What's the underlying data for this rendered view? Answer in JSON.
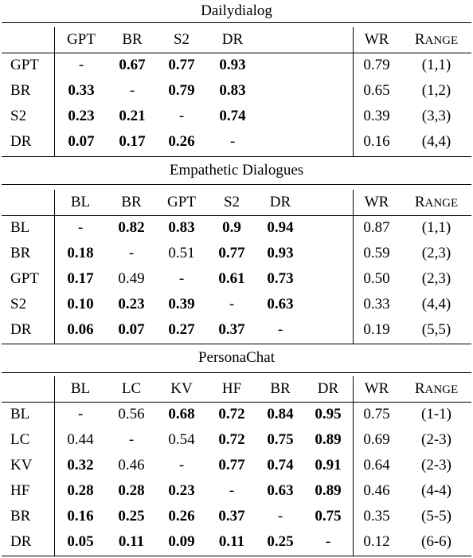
{
  "columns": {
    "wr": "WR",
    "range_first": "R",
    "range_rest": "ANGE"
  },
  "sections": [
    {
      "title": "Dailydialog",
      "headers": [
        "GPT",
        "BR",
        "S2",
        "DR"
      ],
      "rows": [
        {
          "label": "GPT",
          "cells": [
            {
              "v": "-",
              "b": false
            },
            {
              "v": "0.67",
              "b": true
            },
            {
              "v": "0.77",
              "b": true
            },
            {
              "v": "0.93",
              "b": true
            }
          ],
          "wr": "0.79",
          "range": "(1,1)"
        },
        {
          "label": "BR",
          "cells": [
            {
              "v": "0.33",
              "b": true
            },
            {
              "v": "-",
              "b": false
            },
            {
              "v": "0.79",
              "b": true
            },
            {
              "v": "0.83",
              "b": true
            }
          ],
          "wr": "0.65",
          "range": "(1,2)"
        },
        {
          "label": "S2",
          "cells": [
            {
              "v": "0.23",
              "b": true
            },
            {
              "v": "0.21",
              "b": true
            },
            {
              "v": "-",
              "b": false
            },
            {
              "v": "0.74",
              "b": true
            }
          ],
          "wr": "0.39",
          "range": "(3,3)"
        },
        {
          "label": "DR",
          "cells": [
            {
              "v": "0.07",
              "b": true
            },
            {
              "v": "0.17",
              "b": true
            },
            {
              "v": "0.26",
              "b": true
            },
            {
              "v": "-",
              "b": false
            }
          ],
          "wr": "0.16",
          "range": "(4,4)"
        }
      ]
    },
    {
      "title": "Empathetic Dialogues",
      "headers": [
        "BL",
        "BR",
        "GPT",
        "S2",
        "DR"
      ],
      "rows": [
        {
          "label": "BL",
          "cells": [
            {
              "v": "-",
              "b": false
            },
            {
              "v": "0.82",
              "b": true
            },
            {
              "v": "0.83",
              "b": true
            },
            {
              "v": "0.9",
              "b": true
            },
            {
              "v": "0.94",
              "b": true
            }
          ],
          "wr": "0.87",
          "range": "(1,1)"
        },
        {
          "label": "BR",
          "cells": [
            {
              "v": "0.18",
              "b": true
            },
            {
              "v": "-",
              "b": false
            },
            {
              "v": "0.51",
              "b": false
            },
            {
              "v": "0.77",
              "b": true
            },
            {
              "v": "0.93",
              "b": true
            }
          ],
          "wr": "0.59",
          "range": "(2,3)"
        },
        {
          "label": "GPT",
          "cells": [
            {
              "v": "0.17",
              "b": true
            },
            {
              "v": "0.49",
              "b": false
            },
            {
              "v": "-",
              "b": false
            },
            {
              "v": "0.61",
              "b": true
            },
            {
              "v": "0.73",
              "b": true
            }
          ],
          "wr": "0.50",
          "range": "(2,3)"
        },
        {
          "label": "S2",
          "cells": [
            {
              "v": "0.10",
              "b": true
            },
            {
              "v": "0.23",
              "b": true
            },
            {
              "v": "0.39",
              "b": true
            },
            {
              "v": "-",
              "b": false
            },
            {
              "v": "0.63",
              "b": true
            }
          ],
          "wr": "0.33",
          "range": "(4,4)"
        },
        {
          "label": "DR",
          "cells": [
            {
              "v": "0.06",
              "b": true
            },
            {
              "v": "0.07",
              "b": true
            },
            {
              "v": "0.27",
              "b": true
            },
            {
              "v": "0.37",
              "b": true
            },
            {
              "v": "-",
              "b": false
            }
          ],
          "wr": "0.19",
          "range": "(5,5)"
        }
      ]
    },
    {
      "title": "PersonaChat",
      "headers": [
        "BL",
        "LC",
        "KV",
        "HF",
        "BR",
        "DR"
      ],
      "rows": [
        {
          "label": "BL",
          "cells": [
            {
              "v": "-",
              "b": false
            },
            {
              "v": "0.56",
              "b": false
            },
            {
              "v": "0.68",
              "b": true
            },
            {
              "v": "0.72",
              "b": true
            },
            {
              "v": "0.84",
              "b": true
            },
            {
              "v": "0.95",
              "b": true
            }
          ],
          "wr": "0.75",
          "range": "(1-1)"
        },
        {
          "label": "LC",
          "cells": [
            {
              "v": "0.44",
              "b": false
            },
            {
              "v": "-",
              "b": false
            },
            {
              "v": "0.54",
              "b": false
            },
            {
              "v": "0.72",
              "b": true
            },
            {
              "v": "0.75",
              "b": true
            },
            {
              "v": "0.89",
              "b": true
            }
          ],
          "wr": "0.69",
          "range": "(2-3)"
        },
        {
          "label": "KV",
          "cells": [
            {
              "v": "0.32",
              "b": true
            },
            {
              "v": "0.46",
              "b": false
            },
            {
              "v": "-",
              "b": false
            },
            {
              "v": "0.77",
              "b": true
            },
            {
              "v": "0.74",
              "b": true
            },
            {
              "v": "0.91",
              "b": true
            }
          ],
          "wr": "0.64",
          "range": "(2-3)"
        },
        {
          "label": "HF",
          "cells": [
            {
              "v": "0.28",
              "b": true
            },
            {
              "v": "0.28",
              "b": true
            },
            {
              "v": "0.23",
              "b": true
            },
            {
              "v": "-",
              "b": false
            },
            {
              "v": "0.63",
              "b": true
            },
            {
              "v": "0.89",
              "b": true
            }
          ],
          "wr": "0.46",
          "range": "(4-4)"
        },
        {
          "label": "BR",
          "cells": [
            {
              "v": "0.16",
              "b": true
            },
            {
              "v": "0.25",
              "b": true
            },
            {
              "v": "0.26",
              "b": true
            },
            {
              "v": "0.37",
              "b": true
            },
            {
              "v": "-",
              "b": false
            },
            {
              "v": "0.75",
              "b": true
            }
          ],
          "wr": "0.35",
          "range": "(5-5)"
        },
        {
          "label": "DR",
          "cells": [
            {
              "v": "0.05",
              "b": true
            },
            {
              "v": "0.11",
              "b": true
            },
            {
              "v": "0.09",
              "b": true
            },
            {
              "v": "0.11",
              "b": true
            },
            {
              "v": "0.25",
              "b": true
            },
            {
              "v": "-",
              "b": false
            }
          ],
          "wr": "0.12",
          "range": "(6-6)"
        }
      ]
    }
  ]
}
